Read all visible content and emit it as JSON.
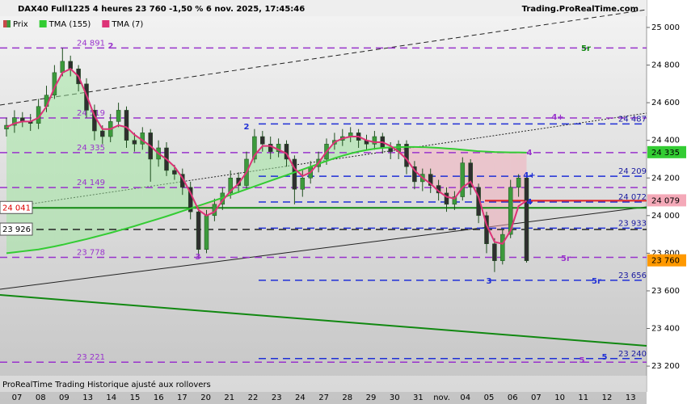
{
  "chart_data": {
    "type": "candlestick",
    "title": "DAX40 Full1225 4 heures 23 760 -1,50 % 6 nov. 2025, 17:45:46",
    "source": "Trading.ProRealTime.com",
    "footer": "ProRealTime Trading  Historique ajusté aux rollovers",
    "x_axis_labels": [
      "07",
      "08",
      "09",
      "13",
      "14",
      "15",
      "16",
      "17",
      "20",
      "21",
      "22",
      "23",
      "24",
      "27",
      "28",
      "29",
      "30",
      "31",
      "nov.",
      "04",
      "05",
      "06",
      "07",
      "10",
      "11",
      "12",
      "13"
    ],
    "candles": {
      "name": "Prix",
      "up_color": "#3c9a3c",
      "down_color": "#2f2f2f",
      "open": [
        24460,
        24480,
        24520,
        24500,
        24490,
        24580,
        24640,
        24760,
        24820,
        24780,
        24700,
        24560,
        24450,
        24420,
        24500,
        24560,
        24400,
        24380,
        24440,
        24300,
        24360,
        24240,
        24220,
        24150,
        24020,
        23820,
        24000,
        24060,
        24120,
        24200,
        24160,
        24300,
        24420,
        24380,
        24340,
        24380,
        24300,
        24140,
        24200,
        24260,
        24300,
        24380,
        24400,
        24420,
        24440,
        24400,
        24380,
        24420,
        24360,
        24340,
        24380,
        24260,
        24180,
        24220,
        24160,
        24120,
        24060,
        24100,
        24280,
        24150,
        24000,
        23850,
        23760,
        23900,
        24150,
        24200
      ],
      "high": [
        24520,
        24560,
        24550,
        24540,
        24620,
        24690,
        24800,
        24891,
        24850,
        24800,
        24730,
        24590,
        24480,
        24540,
        24600,
        24580,
        24440,
        24470,
        24460,
        24400,
        24390,
        24270,
        24250,
        24180,
        24040,
        24030,
        24090,
        24150,
        24240,
        24230,
        24340,
        24460,
        24450,
        24420,
        24410,
        24400,
        24320,
        24240,
        24290,
        24340,
        24410,
        24440,
        24460,
        24470,
        24460,
        24430,
        24450,
        24440,
        24390,
        24400,
        24400,
        24290,
        24250,
        24250,
        24190,
        24150,
        24130,
        24310,
        24300,
        24170,
        24020,
        23880,
        23930,
        24190,
        24220,
        24210
      ],
      "low": [
        24420,
        24440,
        24470,
        24450,
        24460,
        24550,
        24620,
        24740,
        24740,
        24660,
        24520,
        24400,
        24380,
        24390,
        24470,
        24360,
        24340,
        24350,
        24180,
        24260,
        24210,
        24190,
        24110,
        23980,
        23778,
        23800,
        23970,
        24030,
        24090,
        24120,
        24140,
        24280,
        24340,
        24300,
        24310,
        24260,
        24060,
        24100,
        24170,
        24230,
        24270,
        24350,
        24370,
        24390,
        24360,
        24350,
        24350,
        24330,
        24300,
        24300,
        24220,
        24140,
        24130,
        24120,
        24080,
        24020,
        24030,
        24080,
        24110,
        23960,
        23800,
        23700,
        23740,
        23880,
        24100,
        23750
      ],
      "close": [
        24480,
        24520,
        24500,
        24490,
        24580,
        24640,
        24760,
        24820,
        24780,
        24700,
        24560,
        24450,
        24420,
        24500,
        24560,
        24400,
        24380,
        24440,
        24300,
        24360,
        24240,
        24220,
        24150,
        24020,
        23820,
        24000,
        24060,
        24120,
        24200,
        24160,
        24300,
        24420,
        24380,
        24340,
        24380,
        24300,
        24140,
        24200,
        24260,
        24300,
        24380,
        24400,
        24420,
        24440,
        24400,
        24380,
        24420,
        24360,
        24340,
        24380,
        24260,
        24180,
        24220,
        24160,
        24120,
        24060,
        24100,
        24280,
        24150,
        24000,
        23850,
        23760,
        23900,
        24150,
        24200,
        23760
      ]
    },
    "series": [
      {
        "name": "TMA (155)",
        "color": "#33cc33",
        "values": [
          23800,
          23805,
          23810,
          23815,
          23820,
          23828,
          23836,
          23845,
          23855,
          23865,
          23875,
          23886,
          23897,
          23908,
          23920,
          23932,
          23944,
          23957,
          23970,
          23983,
          23996,
          24010,
          24024,
          24038,
          24052,
          24066,
          24080,
          24095,
          24110,
          24125,
          24140,
          24155,
          24170,
          24185,
          24200,
          24215,
          24230,
          24245,
          24260,
          24275,
          24290,
          24305,
          24318,
          24330,
          24340,
          24348,
          24355,
          24360,
          24362,
          24364,
          24365,
          24365,
          24364,
          24362,
          24360,
          24357,
          24354,
          24350,
          24346,
          24342,
          24340,
          24338,
          24337,
          24336,
          24336,
          24335
        ]
      },
      {
        "name": "TMA (7)",
        "color": "#dd3377",
        "values": [
          24470,
          24490,
          24500,
          24500,
          24520,
          24580,
          24680,
          24760,
          24780,
          24740,
          24640,
          24530,
          24460,
          24460,
          24480,
          24470,
          24430,
          24400,
          24370,
          24330,
          24300,
          24260,
          24200,
          24120,
          24030,
          24000,
          24020,
          24080,
          24130,
          24170,
          24230,
          24320,
          24370,
          24370,
          24350,
          24330,
          24250,
          24210,
          24230,
          24280,
          24340,
          24390,
          24410,
          24420,
          24420,
          24400,
          24390,
          24390,
          24370,
          24340,
          24300,
          24240,
          24200,
          24170,
          24130,
          24100,
          24090,
          24150,
          24180,
          24100,
          23950,
          23860,
          23850,
          23920,
          24050,
          24079
        ]
      }
    ],
    "levels": [
      {
        "value": 24891,
        "label": "24 891",
        "color": "#9933cc",
        "style": "dashed"
      },
      {
        "value": 24519,
        "label": "24 519",
        "color": "#9933cc",
        "style": "dashed"
      },
      {
        "value": 24335,
        "label": "24 335",
        "color": "#9933cc",
        "style": "dashed"
      },
      {
        "value": 24149,
        "label": "24 149",
        "color": "#9933cc",
        "style": "dashed"
      },
      {
        "value": 23778,
        "label": "23 778",
        "color": "#9933cc",
        "style": "dashed"
      },
      {
        "value": 23221,
        "label": "23 221",
        "color": "#9933cc",
        "style": "dashed"
      },
      {
        "value": 24487,
        "label": "24 487",
        "color": "#1f2fd6",
        "style": "dashed"
      },
      {
        "value": 24209,
        "label": "24 209",
        "color": "#1f2fd6",
        "style": "dashed"
      },
      {
        "value": 24072,
        "label": "24 072",
        "color": "#1f2fd6",
        "style": "dashed"
      },
      {
        "value": 23933,
        "label": "23 933",
        "color": "#1f2fd6",
        "style": "dashed"
      },
      {
        "value": 23656,
        "label": "23 656",
        "color": "#1f2fd6",
        "style": "dashed"
      },
      {
        "value": 23240,
        "label": "23 240",
        "color": "#1f2fd6",
        "style": "dashed"
      },
      {
        "value": 24041,
        "label": "24 041",
        "color": "#118811",
        "style": "solid"
      },
      {
        "value": 23926,
        "label": "23 926",
        "color": "#222222",
        "style": "dashed"
      },
      {
        "value": 24079,
        "label": "24 079",
        "color": "#e02020",
        "style": "solid"
      }
    ],
    "axis_markers": [
      {
        "value": 24335,
        "label": "24 335",
        "color": "#33cc33"
      },
      {
        "value": 23760,
        "label": "23 760",
        "color": "#ff9900"
      }
    ],
    "annotations": [
      {
        "text": "2",
        "color": "#9933cc"
      },
      {
        "text": "5r",
        "color": "#118811"
      },
      {
        "text": "4+",
        "color": "#9933cc"
      },
      {
        "text": "2",
        "color": "#1f2fd6"
      },
      {
        "text": "4",
        "color": "#9933cc"
      },
      {
        "text": "4+",
        "color": "#1f2fd6"
      },
      {
        "text": "4",
        "color": "#1f2fd6"
      },
      {
        "text": "3",
        "color": "#9933cc"
      },
      {
        "text": "5r",
        "color": "#9933cc"
      },
      {
        "text": "3",
        "color": "#1f2fd6"
      },
      {
        "text": "5r",
        "color": "#1f2fd6"
      },
      {
        "text": "5",
        "color": "#9933cc"
      },
      {
        "text": "5",
        "color": "#1f2fd6"
      }
    ],
    "ylim": [
      23063,
      25060
    ],
    "yticks": [
      {
        "value": 25000,
        "label": "25 000"
      },
      {
        "value": 24800,
        "label": "24 800"
      },
      {
        "value": 24600,
        "label": "24 600"
      },
      {
        "value": 24400,
        "label": "24 400"
      },
      {
        "value": 24200,
        "label": "24 200"
      },
      {
        "value": 24000,
        "label": "24 000"
      },
      {
        "value": 23800,
        "label": "23 800"
      },
      {
        "value": 23600,
        "label": "23 600"
      },
      {
        "value": 23400,
        "label": "23 400"
      },
      {
        "value": 23200,
        "label": "23 200"
      }
    ]
  }
}
